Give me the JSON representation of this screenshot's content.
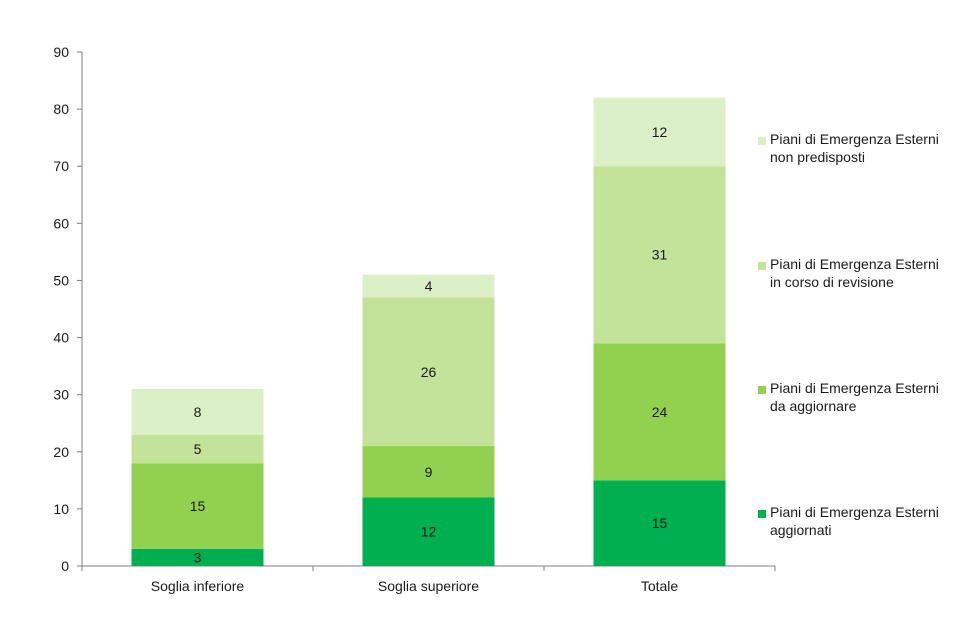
{
  "chart_data": {
    "type": "bar",
    "stacked": true,
    "categories": [
      "Soglia inferiore",
      "Soglia superiore",
      "Totale"
    ],
    "series": [
      {
        "name": "Piani di Emergenza Esterni aggiornati",
        "legend_lines": [
          "Piani di Emergenza Esterni",
          "aggiornati"
        ],
        "color": "#00b050",
        "values": [
          3,
          12,
          15
        ]
      },
      {
        "name": "Piani di Emergenza Esterni da aggiornare",
        "legend_lines": [
          "Piani di Emergenza Esterni",
          "da aggiornare"
        ],
        "color": "#92d050",
        "values": [
          15,
          9,
          24
        ]
      },
      {
        "name": "Piani di Emergenza Esterni in corso di revisione",
        "legend_lines": [
          "Piani di Emergenza Esterni",
          "in corso di revisione"
        ],
        "color": "#c2e398",
        "values": [
          5,
          26,
          31
        ]
      },
      {
        "name": "Piani di Emergenza Esterni non predisposti",
        "legend_lines": [
          "Piani di Emergenza Esterni",
          "non predisposti"
        ],
        "color": "#dcf0c8",
        "values": [
          8,
          4,
          12
        ]
      }
    ],
    "y_ticks": [
      "0",
      "10",
      "20",
      "30",
      "40",
      "50",
      "60",
      "70",
      "80",
      "90"
    ],
    "ylim": [
      0,
      90
    ],
    "grid": false,
    "legend_position": "right",
    "axis_color": "#7f7f7f",
    "label_color": "#1a1a1a"
  }
}
